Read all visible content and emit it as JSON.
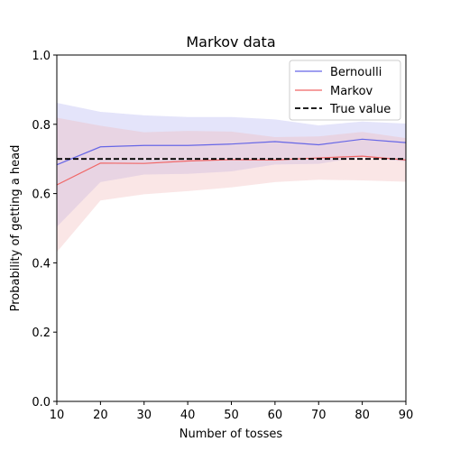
{
  "chart_data": {
    "type": "line",
    "title": "Markov data",
    "xlabel": "Number of tosses",
    "ylabel": "Probability of getting a head",
    "x": [
      10,
      20,
      30,
      40,
      50,
      60,
      70,
      80,
      90
    ],
    "xlim": [
      10,
      90
    ],
    "ylim": [
      0.0,
      1.0
    ],
    "xticks": [
      10,
      20,
      30,
      40,
      50,
      60,
      70,
      80,
      90
    ],
    "yticks": [
      0.0,
      0.2,
      0.4,
      0.6,
      0.8,
      1.0
    ],
    "ytick_labels": [
      "0.0",
      "0.2",
      "0.4",
      "0.6",
      "0.8",
      "1.0"
    ],
    "grid": false,
    "legend_position": "top-right",
    "series": [
      {
        "name": "Bernoulli",
        "color": "#6666e6",
        "band_color": "#b3b3f0",
        "values": [
          0.683,
          0.735,
          0.739,
          0.739,
          0.743,
          0.75,
          0.741,
          0.757,
          0.747
        ],
        "lower": [
          0.504,
          0.633,
          0.655,
          0.657,
          0.664,
          0.684,
          0.686,
          0.706,
          0.692
        ],
        "upper": [
          0.862,
          0.836,
          0.826,
          0.821,
          0.821,
          0.814,
          0.797,
          0.808,
          0.802
        ]
      },
      {
        "name": "Markov",
        "color": "#f06666",
        "band_color": "#f0b8b8",
        "values": [
          0.625,
          0.688,
          0.687,
          0.694,
          0.698,
          0.697,
          0.703,
          0.708,
          0.697
        ],
        "lower": [
          0.431,
          0.58,
          0.598,
          0.607,
          0.618,
          0.633,
          0.64,
          0.638,
          0.634
        ],
        "upper": [
          0.819,
          0.796,
          0.777,
          0.781,
          0.779,
          0.763,
          0.765,
          0.778,
          0.76
        ]
      }
    ],
    "reference_line": {
      "name": "True value",
      "value": 0.7,
      "color": "#000000",
      "style": "dashed"
    }
  }
}
